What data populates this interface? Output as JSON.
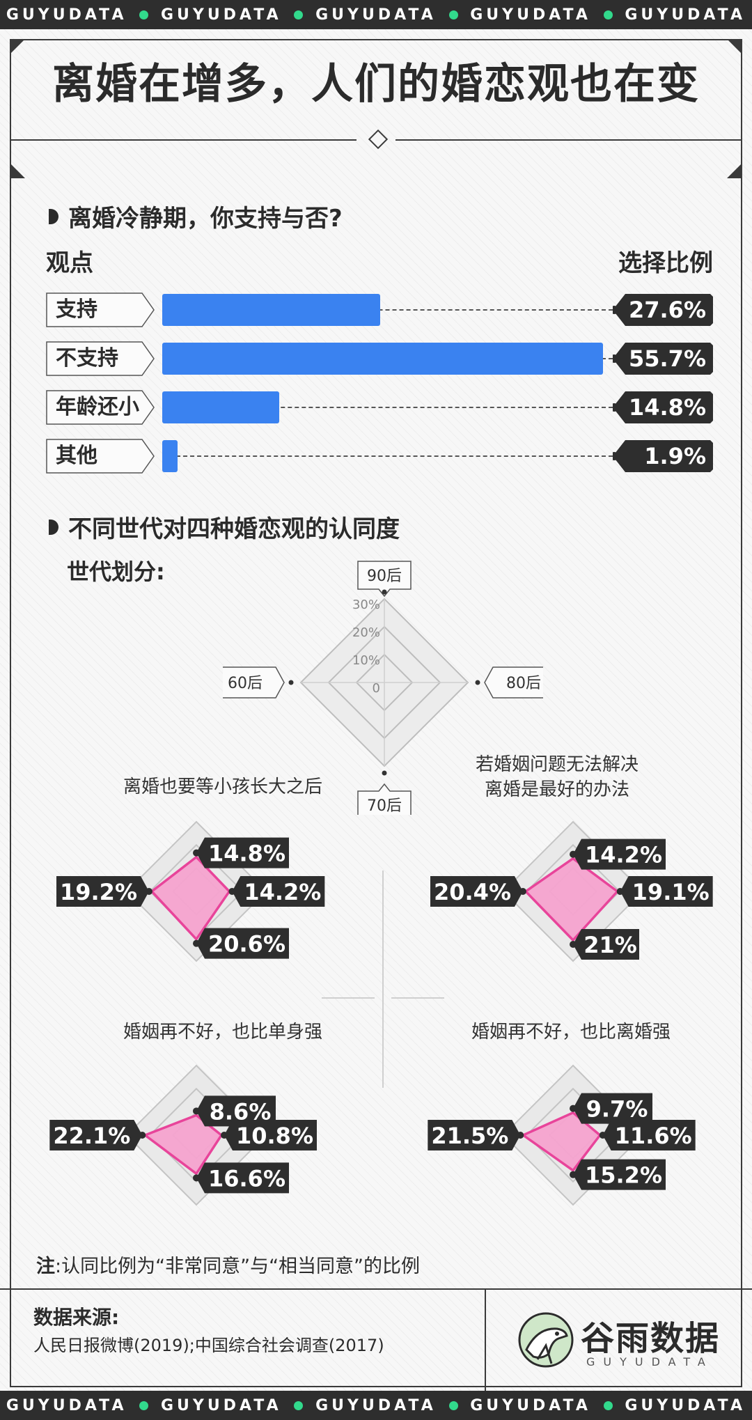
{
  "ticker": {
    "text": "GUYUDATA"
  },
  "title": "离婚在增多，人们的婚恋观也在变",
  "section1": {
    "title": "离婚冷静期，你支持与否?",
    "col_left": "观点",
    "col_right": "选择比例"
  },
  "section2": {
    "title": "不同世代对四种婚恋观的认同度",
    "legend_label": "世代划分:"
  },
  "note": {
    "prefix": "注",
    "text": ":认同比例为“非常同意”与“相当同意”的比例"
  },
  "source": {
    "label": "数据来源:",
    "text": "人民日报微博(2019);中国综合社会调查(2017)"
  },
  "logo": {
    "name": "谷雨数据",
    "sub": "GUYUDATA"
  },
  "colors": {
    "bar": "#3a82f0",
    "radar_fill": "#f5a3cf",
    "radar_stroke": "#e8449a",
    "dark": "#2e2e2e",
    "dot": "#32d98c"
  },
  "chart_data": [
    {
      "type": "bar",
      "title": "离婚冷静期，你支持与否?",
      "xlabel": "观点",
      "ylabel": "选择比例",
      "categories": [
        "支持",
        "不支持",
        "年龄还小",
        "其他"
      ],
      "values": [
        27.6,
        55.7,
        14.8,
        1.9
      ],
      "value_labels": [
        "27.6%",
        "55.7%",
        "14.8%",
        "1.9%"
      ],
      "ylim": [
        0,
        56
      ]
    },
    {
      "type": "radar",
      "title": "世代划分:",
      "axes": [
        "90后",
        "80后",
        "70后",
        "60后"
      ],
      "ticks": [
        "30%",
        "20%",
        "10%",
        "0"
      ],
      "rlim": [
        0,
        30
      ],
      "series": [
        {
          "name": "离婚也要等小孩长大之后",
          "values": [
            14.8,
            14.2,
            20.6,
            19.2
          ],
          "labels": [
            "14.8%",
            "14.2%",
            "20.6%",
            "19.2%"
          ]
        },
        {
          "name": "若婚姻问题无法解决\n离婚是最好的办法",
          "values": [
            14.2,
            19.1,
            21,
            20.4
          ],
          "labels": [
            "14.2%",
            "19.1%",
            "21%",
            "20.4%"
          ]
        },
        {
          "name": "婚姻再不好，也比单身强",
          "values": [
            8.6,
            10.8,
            16.6,
            22.1
          ],
          "labels": [
            "8.6%",
            "10.8%",
            "16.6%",
            "22.1%"
          ]
        },
        {
          "name": "婚姻再不好，也比离婚强",
          "values": [
            9.7,
            11.6,
            15.2,
            21.5
          ],
          "labels": [
            "9.7%",
            "11.6%",
            "15.2%",
            "21.5%"
          ]
        }
      ]
    }
  ]
}
